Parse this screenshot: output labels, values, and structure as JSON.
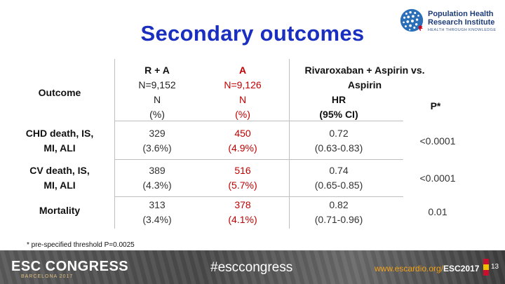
{
  "slide": {
    "title": "Secondary outcomes",
    "logo": {
      "line1": "Population Health",
      "line2": "Research Institute",
      "tagline": "HEALTH THROUGH KNOWLEDGE"
    },
    "table": {
      "header": {
        "outcome": "Outcome",
        "ra": [
          "R + A",
          "N=9,152",
          "N",
          "(%)"
        ],
        "a": [
          "A",
          "N=9,126",
          "N",
          "(%)"
        ],
        "comparison": [
          "Rivaroxaban + Aspirin  vs.",
          "Aspirin"
        ],
        "hr": [
          "HR",
          "(95% CI)"
        ],
        "p": "P*"
      },
      "rows": [
        {
          "outcome": [
            "CHD death, IS,",
            "MI, ALI"
          ],
          "ra": [
            "329",
            "(3.6%)"
          ],
          "a": [
            "450",
            "(4.9%)"
          ],
          "hr": [
            "0.72",
            "(0.63-0.83)"
          ],
          "p": "<0.0001"
        },
        {
          "outcome": [
            "CV death, IS,",
            "MI, ALI"
          ],
          "ra": [
            "389",
            "(4.3%)"
          ],
          "a": [
            "516",
            "(5.7%)"
          ],
          "hr": [
            "0.74",
            "(0.65-0.85)"
          ],
          "p": "<0.0001"
        },
        {
          "outcome": [
            "Mortality"
          ],
          "ra": [
            "313",
            "(3.4%)"
          ],
          "a": [
            "378",
            "(4.1%)"
          ],
          "hr": [
            "0.82",
            "(0.71-0.96)"
          ],
          "p": "0.01"
        }
      ]
    },
    "footnote": "* pre-specified threshold P=0.0025"
  },
  "footer": {
    "brand": "ESC CONGRESS",
    "city": "BARCELONA 2017",
    "hashtag": "#esccongress",
    "site_prefix": "www.escardio.org/",
    "site_bold": "ESC2017",
    "page_number": "13"
  },
  "colors": {
    "title": "#1a2fbf",
    "text": "#222222",
    "rules": "#bfbfbf",
    "footer_link": "#f3a21a"
  }
}
